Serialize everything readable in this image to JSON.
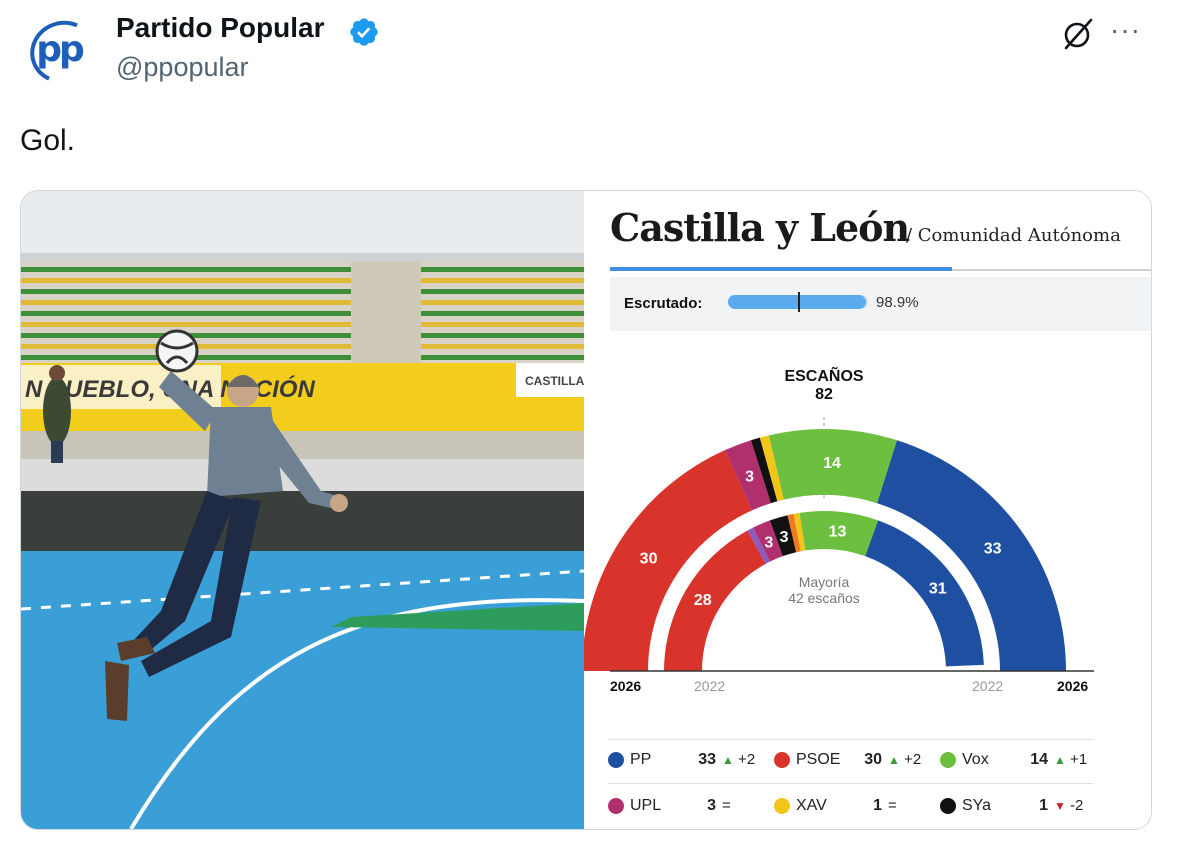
{
  "tweet": {
    "author_name": "Partido Popular",
    "handle": "@ppopular",
    "avatar_text": "pp",
    "text": "Gol.",
    "more_label": "···"
  },
  "photo": {
    "banner_left": "N PUEBLO, UNA NACIÓN",
    "banner_right": "CASTILLA"
  },
  "graphic": {
    "title": "Castilla y León",
    "subtitle": "/ Comunidad Autónoma",
    "scrutiny_label": "Escrutado:",
    "scrutiny_value": 0.989,
    "scrutiny_text": "98.9%",
    "seats_label": "ESCAÑOS",
    "seats_total": "82",
    "majority_label": "Mayoría",
    "majority_seats": "42 escaños",
    "year_outer": "2026",
    "year_inner": "2022"
  },
  "chart_data": {
    "type": "hemicycle",
    "total_seats": 82,
    "majority": 42,
    "series": [
      {
        "name": "2026",
        "ring": "outer",
        "parties": [
          {
            "party": "PSOE",
            "seats": 30,
            "color": "#d9342b"
          },
          {
            "party": "UPL",
            "seats": 3,
            "color": "#b0306e"
          },
          {
            "party": "SYa",
            "seats": 1,
            "color": "#111111"
          },
          {
            "party": "XAV",
            "seats": 1,
            "color": "#f2c51b"
          },
          {
            "party": "Vox",
            "seats": 14,
            "color": "#6cbf3f"
          },
          {
            "party": "PP",
            "seats": 33,
            "color": "#1f4fa0"
          }
        ]
      },
      {
        "name": "2022",
        "ring": "inner",
        "parties": [
          {
            "party": "PSOE",
            "seats": 28,
            "color": "#d9342b"
          },
          {
            "party": "Other",
            "seats": 1,
            "color": "#8b5cc0"
          },
          {
            "party": "UPL",
            "seats": 3,
            "color": "#b0306e"
          },
          {
            "party": "SYa",
            "seats": 3,
            "color": "#111111"
          },
          {
            "party": "Other",
            "seats": 1,
            "color": "#f07a1e"
          },
          {
            "party": "XAV",
            "seats": 1,
            "color": "#f2c51b"
          },
          {
            "party": "Vox",
            "seats": 13,
            "color": "#6cbf3f"
          },
          {
            "party": "PP",
            "seats": 31,
            "color": "#1f4fa0"
          }
        ]
      }
    ]
  },
  "legend": [
    {
      "party": "PP",
      "seats": "33",
      "dir": "up",
      "delta": "+2",
      "color": "#1f4fa0"
    },
    {
      "party": "PSOE",
      "seats": "30",
      "dir": "up",
      "delta": "+2",
      "color": "#d9342b"
    },
    {
      "party": "Vox",
      "seats": "14",
      "dir": "up",
      "delta": "+1",
      "color": "#6cbf3f"
    },
    {
      "party": "UPL",
      "seats": "3",
      "dir": "eq",
      "delta": "=",
      "color": "#b0306e"
    },
    {
      "party": "XAV",
      "seats": "1",
      "dir": "eq",
      "delta": "=",
      "color": "#f2c51b"
    },
    {
      "party": "SYa",
      "seats": "1",
      "dir": "down",
      "delta": "-2",
      "color": "#111111"
    }
  ]
}
